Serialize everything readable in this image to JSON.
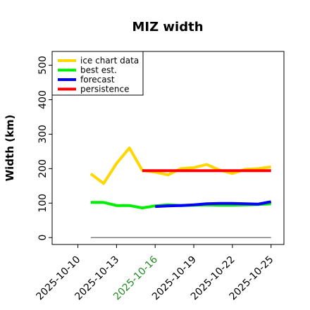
{
  "chart_data": {
    "type": "line",
    "title": "MIZ width",
    "xlabel": "",
    "ylabel": "Width (km)",
    "ylim": [
      -20,
      540
    ],
    "xlim": [
      "2025-10-08",
      "2025-10-26"
    ],
    "yticks": [
      0,
      100,
      200,
      300,
      400,
      500
    ],
    "xticks": [
      {
        "label": "2025-10-10",
        "date": "2025-10-10",
        "color": "#000000"
      },
      {
        "label": "2025-10-13",
        "date": "2025-10-13",
        "color": "#000000"
      },
      {
        "label": "2025-10-16",
        "date": "2025-10-16",
        "color": "#228b22"
      },
      {
        "label": "2025-10-19",
        "date": "2025-10-19",
        "color": "#000000"
      },
      {
        "label": "2025-10-22",
        "date": "2025-10-22",
        "color": "#000000"
      },
      {
        "label": "2025-10-25",
        "date": "2025-10-25",
        "color": "#000000"
      }
    ],
    "legend_position": "top-left",
    "series": [
      {
        "name": "ice chart data",
        "color": "#ffd700",
        "x": [
          "2025-10-11",
          "2025-10-12",
          "2025-10-13",
          "2025-10-14",
          "2025-10-15",
          "2025-10-16",
          "2025-10-17",
          "2025-10-18",
          "2025-10-19",
          "2025-10-20",
          "2025-10-21",
          "2025-10-22",
          "2025-10-23",
          "2025-10-24",
          "2025-10-25"
        ],
        "y": [
          185,
          157,
          215,
          260,
          195,
          190,
          182,
          200,
          203,
          212,
          196,
          186,
          198,
          200,
          205
        ]
      },
      {
        "name": "best est.",
        "color": "#00ee00",
        "x": [
          "2025-10-11",
          "2025-10-12",
          "2025-10-13",
          "2025-10-14",
          "2025-10-15",
          "2025-10-16",
          "2025-10-17",
          "2025-10-18",
          "2025-10-19",
          "2025-10-20",
          "2025-10-21",
          "2025-10-22",
          "2025-10-23",
          "2025-10-24",
          "2025-10-25"
        ],
        "y": [
          102,
          102,
          93,
          93,
          86,
          92,
          95,
          93,
          94,
          95,
          94,
          94,
          95,
          96,
          98
        ]
      },
      {
        "name": "forecast",
        "color": "#0000ff",
        "x": [
          "2025-10-16",
          "2025-10-17",
          "2025-10-18",
          "2025-10-19",
          "2025-10-20",
          "2025-10-21",
          "2025-10-22",
          "2025-10-23",
          "2025-10-24",
          "2025-10-25"
        ],
        "y": [
          90,
          92,
          93,
          95,
          98,
          99,
          99,
          98,
          97,
          104
        ]
      },
      {
        "name": "persistence",
        "color": "#ff0000",
        "x": [
          "2025-10-15",
          "2025-10-25"
        ],
        "y": [
          194,
          194
        ]
      }
    ],
    "baseline": {
      "color": "#808080",
      "x": [
        "2025-10-11",
        "2025-10-25"
      ],
      "y": [
        0,
        0
      ]
    }
  }
}
